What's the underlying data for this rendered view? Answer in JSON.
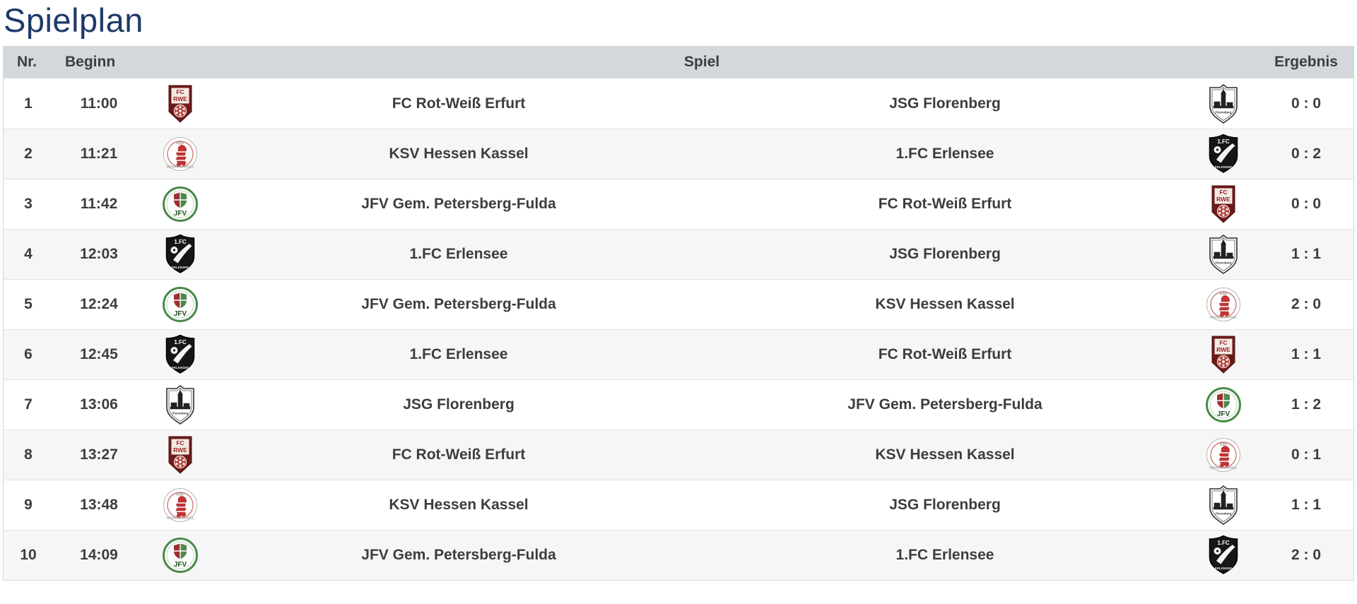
{
  "page": {
    "title": "Spielplan"
  },
  "colors": {
    "title_text": "#1e3a6a",
    "header_background": "#d4d8dc",
    "header_text": "#3d3d3d",
    "row_text": "#3d3d3d",
    "row_alt_background": "#f6f6f6",
    "rwe_dark_red": "#6d1a1a",
    "ksv_red": "#bf3434",
    "jfv_green": "#4a8a4a",
    "erlensee_black": "#161616"
  },
  "table": {
    "headers": {
      "nr": "Nr.",
      "beginn": "Beginn",
      "spiel": "Spiel",
      "ergebnis": "Ergebnis"
    },
    "rows": [
      {
        "nr": "1",
        "time": "11:00",
        "home": "FC Rot-Weiß Erfurt",
        "home_logo": "fc-rot-weiss-erfurt-crest",
        "away": "JSG Florenberg",
        "away_logo": "jsg-florenberg-crest",
        "result": "0 : 0"
      },
      {
        "nr": "2",
        "time": "11:21",
        "home": "KSV Hessen Kassel",
        "home_logo": "ksv-hessen-kassel-crest",
        "away": "1.FC Erlensee",
        "away_logo": "fc-erlensee-crest",
        "result": "0 : 2"
      },
      {
        "nr": "3",
        "time": "11:42",
        "home": "JFV Gem. Petersberg-Fulda",
        "home_logo": "jfv-petersberg-fulda-crest",
        "away": "FC Rot-Weiß Erfurt",
        "away_logo": "fc-rot-weiss-erfurt-crest",
        "result": "0 : 0"
      },
      {
        "nr": "4",
        "time": "12:03",
        "home": "1.FC Erlensee",
        "home_logo": "fc-erlensee-crest",
        "away": "JSG Florenberg",
        "away_logo": "jsg-florenberg-crest",
        "result": "1 : 1"
      },
      {
        "nr": "5",
        "time": "12:24",
        "home": "JFV Gem. Petersberg-Fulda",
        "home_logo": "jfv-petersberg-fulda-crest",
        "away": "KSV Hessen Kassel",
        "away_logo": "ksv-hessen-kassel-crest",
        "result": "2 : 0"
      },
      {
        "nr": "6",
        "time": "12:45",
        "home": "1.FC Erlensee",
        "home_logo": "fc-erlensee-crest",
        "away": "FC Rot-Weiß Erfurt",
        "away_logo": "fc-rot-weiss-erfurt-crest",
        "result": "1 : 1"
      },
      {
        "nr": "7",
        "time": "13:06",
        "home": "JSG Florenberg",
        "home_logo": "jsg-florenberg-crest",
        "away": "JFV Gem. Petersberg-Fulda",
        "away_logo": "jfv-petersberg-fulda-crest",
        "result": "1 : 2"
      },
      {
        "nr": "8",
        "time": "13:27",
        "home": "FC Rot-Weiß Erfurt",
        "home_logo": "fc-rot-weiss-erfurt-crest",
        "away": "KSV Hessen Kassel",
        "away_logo": "ksv-hessen-kassel-crest",
        "result": "0 : 1"
      },
      {
        "nr": "9",
        "time": "13:48",
        "home": "KSV Hessen Kassel",
        "home_logo": "ksv-hessen-kassel-crest",
        "away": "JSG Florenberg",
        "away_logo": "jsg-florenberg-crest",
        "result": "1 : 1"
      },
      {
        "nr": "10",
        "time": "14:09",
        "home": "JFV Gem. Petersberg-Fulda",
        "home_logo": "jfv-petersberg-fulda-crest",
        "away": "1.FC Erlensee",
        "away_logo": "fc-erlensee-crest",
        "result": "2 : 0"
      }
    ]
  }
}
